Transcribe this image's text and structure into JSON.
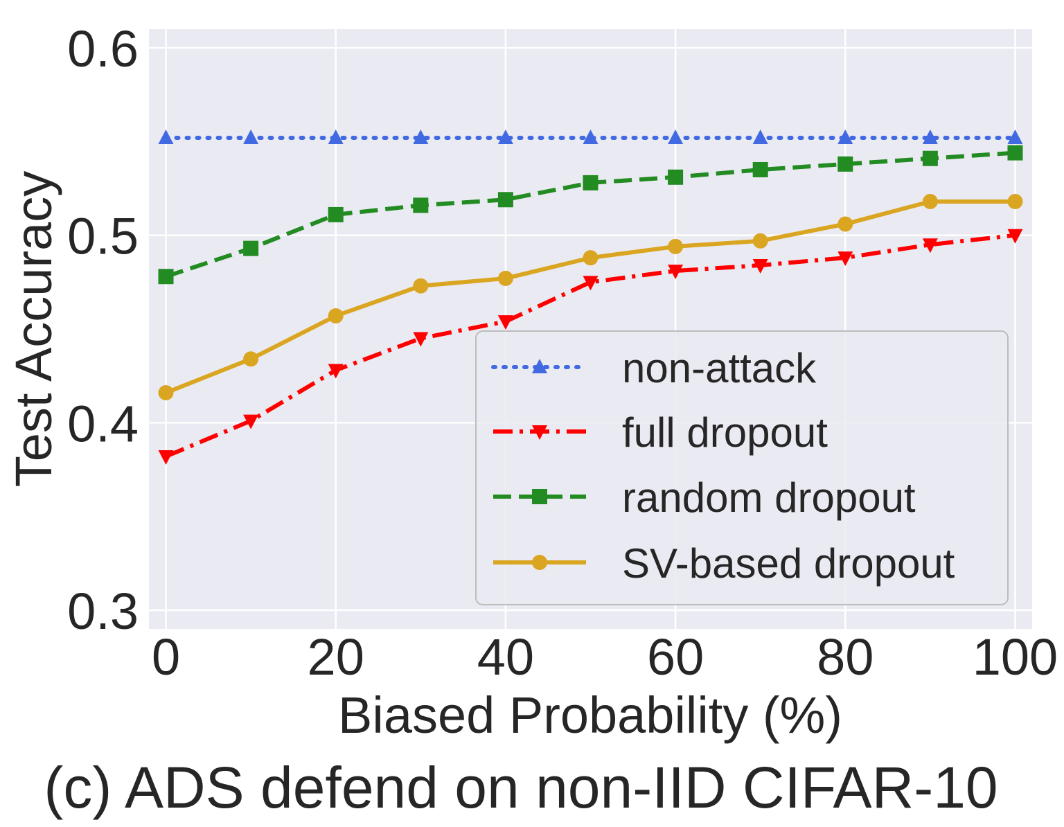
{
  "chart_data": {
    "type": "line",
    "caption": "(c) ADS defend on non-IID CIFAR-10",
    "xlabel": "Biased Probability (%)",
    "ylabel": "Test Accuracy",
    "xlim": [
      -2,
      102
    ],
    "ylim": [
      0.29,
      0.61
    ],
    "xticks": [
      0,
      20,
      40,
      60,
      80,
      100
    ],
    "yticks": [
      0.3,
      0.4,
      0.5,
      0.6
    ],
    "ytick_labels": [
      "0.3",
      "0.4",
      "0.5",
      "0.6"
    ],
    "grid": true,
    "legend_position": "lower-right",
    "x": [
      0,
      10,
      20,
      30,
      40,
      50,
      60,
      70,
      80,
      90,
      100
    ],
    "series": [
      {
        "name": "non-attack",
        "color": "#4169e1",
        "line_style": "dotted",
        "marker": "triangle-up",
        "values": [
          0.552,
          0.552,
          0.552,
          0.552,
          0.552,
          0.552,
          0.552,
          0.552,
          0.552,
          0.552,
          0.552
        ]
      },
      {
        "name": "full dropout",
        "color": "#ff0000",
        "line_style": "dashdot",
        "marker": "triangle-down",
        "values": [
          0.382,
          0.401,
          0.428,
          0.445,
          0.454,
          0.475,
          0.481,
          0.484,
          0.488,
          0.495,
          0.5
        ]
      },
      {
        "name": "random dropout",
        "color": "#228b22",
        "line_style": "dashed",
        "marker": "square",
        "values": [
          0.478,
          0.493,
          0.511,
          0.516,
          0.519,
          0.528,
          0.531,
          0.535,
          0.538,
          0.541,
          0.544
        ]
      },
      {
        "name": "SV-based dropout",
        "color": "#daa520",
        "line_style": "solid",
        "marker": "circle",
        "values": [
          0.416,
          0.434,
          0.457,
          0.473,
          0.477,
          0.488,
          0.494,
          0.497,
          0.506,
          0.518,
          0.518
        ]
      }
    ]
  }
}
